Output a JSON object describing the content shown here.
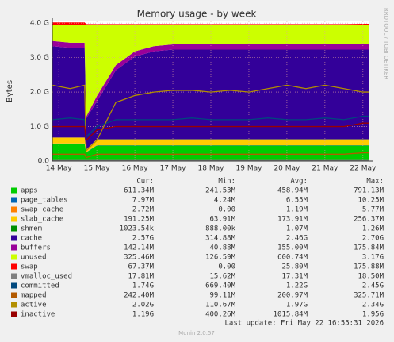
{
  "chart_data": {
    "type": "stacked_area",
    "title": "Memory usage - by week",
    "y_label": "Bytes",
    "side_label": "RRDTOOL / TOBI OETIKER",
    "footer": "Last update: Fri May 22 16:55:31 2026",
    "version": "Munin 2.0.57",
    "legend_headers": [
      "Cur:",
      "Min:",
      "Avg:",
      "Max:"
    ],
    "xlim": [
      -0.17,
      8.17
    ],
    "xticks": [
      {
        "value": 0,
        "label": "14 May"
      },
      {
        "value": 1,
        "label": "15 May"
      },
      {
        "value": 2,
        "label": "16 May"
      },
      {
        "value": 3,
        "label": "17 May"
      },
      {
        "value": 4,
        "label": "18 May"
      },
      {
        "value": 5,
        "label": "19 May"
      },
      {
        "value": 6,
        "label": "20 May"
      },
      {
        "value": 7,
        "label": "21 May"
      },
      {
        "value": 8,
        "label": "22 May"
      }
    ],
    "ylim": [
      0,
      4.05
    ],
    "yticks": [
      {
        "value": 0,
        "label": "0.0"
      },
      {
        "value": 1,
        "label": "1.0 G"
      },
      {
        "value": 2,
        "label": "2.0 G"
      },
      {
        "value": 3,
        "label": "3.0 G"
      },
      {
        "value": 4,
        "label": "4.0 G"
      }
    ],
    "grid": true,
    "x": [
      -0.17,
      0.3,
      0.68,
      0.72,
      1.0,
      1.5,
      2.0,
      2.5,
      3.0,
      3.5,
      4.0,
      4.5,
      5.0,
      5.5,
      6.0,
      6.5,
      7.0,
      7.5,
      8.0,
      8.17
    ],
    "series": [
      {
        "name": "apps",
        "color": "#00cc00",
        "kind": "area",
        "cur": "611.34M",
        "min": "241.53M",
        "avg": "458.94M",
        "max": "791.13M",
        "values": [
          0.5,
          0.5,
          0.5,
          0.25,
          0.45,
          0.45,
          0.45,
          0.45,
          0.45,
          0.45,
          0.45,
          0.45,
          0.45,
          0.45,
          0.45,
          0.45,
          0.45,
          0.45,
          0.45,
          0.45
        ]
      },
      {
        "name": "page_tables",
        "color": "#0066b3",
        "kind": "area",
        "cur": "7.97M",
        "min": "4.24M",
        "avg": "6.55M",
        "max": "10.25M",
        "values": [
          0.008,
          0.008,
          0.008,
          0.008,
          0.008,
          0.008,
          0.008,
          0.008,
          0.008,
          0.008,
          0.008,
          0.008,
          0.008,
          0.008,
          0.008,
          0.008,
          0.008,
          0.008,
          0.008,
          0.008
        ]
      },
      {
        "name": "swap_cache",
        "color": "#ff8000",
        "kind": "area",
        "cur": "2.72M",
        "min": "0.00",
        "avg": "1.19M",
        "max": "5.77M",
        "values": [
          0.003,
          0.003,
          0.003,
          0.003,
          0.003,
          0.003,
          0.003,
          0.003,
          0.003,
          0.003,
          0.003,
          0.003,
          0.003,
          0.003,
          0.003,
          0.003,
          0.003,
          0.003,
          0.003,
          0.003
        ]
      },
      {
        "name": "slab_cache",
        "color": "#ffcc00",
        "kind": "area",
        "cur": "191.25M",
        "min": "63.91M",
        "avg": "173.91M",
        "max": "256.37M",
        "values": [
          0.17,
          0.17,
          0.17,
          0.07,
          0.17,
          0.17,
          0.17,
          0.17,
          0.17,
          0.17,
          0.17,
          0.17,
          0.17,
          0.17,
          0.17,
          0.17,
          0.17,
          0.17,
          0.17,
          0.17
        ]
      },
      {
        "name": "shmem",
        "color": "#008f00",
        "kind": "area",
        "cur": "1023.54k",
        "min": "888.00k",
        "avg": "1.07M",
        "max": "1.26M",
        "values": [
          0.001,
          0.001,
          0.001,
          0.001,
          0.001,
          0.001,
          0.001,
          0.001,
          0.001,
          0.001,
          0.001,
          0.001,
          0.001,
          0.001,
          0.001,
          0.001,
          0.001,
          0.001,
          0.001,
          0.001
        ]
      },
      {
        "name": "cache",
        "color": "#330099",
        "kind": "area",
        "cur": "2.57G",
        "min": "314.88M",
        "avg": "2.46G",
        "max": "2.70G",
        "values": [
          2.65,
          2.6,
          2.6,
          0.9,
          1.1,
          2.0,
          2.4,
          2.55,
          2.6,
          2.6,
          2.6,
          2.6,
          2.6,
          2.6,
          2.6,
          2.6,
          2.6,
          2.6,
          2.6,
          2.6
        ]
      },
      {
        "name": "buffers",
        "color": "#990099",
        "kind": "area",
        "cur": "142.14M",
        "min": "40.88M",
        "avg": "155.00M",
        "max": "175.84M",
        "values": [
          0.15,
          0.15,
          0.15,
          0.05,
          0.15,
          0.15,
          0.15,
          0.15,
          0.15,
          0.15,
          0.15,
          0.15,
          0.15,
          0.15,
          0.15,
          0.15,
          0.15,
          0.15,
          0.15,
          0.15
        ]
      },
      {
        "name": "unused",
        "color": "#ccff00",
        "kind": "area",
        "cur": "325.46M",
        "min": "126.59M",
        "avg": "600.74M",
        "max": "3.17G",
        "values": [
          0.47,
          0.52,
          0.52,
          2.67,
          2.07,
          1.17,
          0.77,
          0.62,
          0.57,
          0.57,
          0.57,
          0.57,
          0.57,
          0.57,
          0.57,
          0.57,
          0.57,
          0.57,
          0.57,
          0.57
        ]
      },
      {
        "name": "swap",
        "color": "#ff0000",
        "kind": "area",
        "cur": "67.37M",
        "min": "0.00",
        "avg": "25.80M",
        "max": "175.88M",
        "values": [
          0.07,
          0.07,
          0.07,
          0.02,
          0.02,
          0.02,
          0.02,
          0.02,
          0.02,
          0.02,
          0.02,
          0.02,
          0.02,
          0.02,
          0.02,
          0.02,
          0.02,
          0.02,
          0.03,
          0.03
        ]
      },
      {
        "name": "vmalloc_used",
        "color": "#808080",
        "kind": "line",
        "cur": "17.81M",
        "min": "15.62M",
        "avg": "17.31M",
        "max": "18.50M",
        "values": [
          0.018,
          0.018,
          0.018,
          0.018,
          0.018,
          0.018,
          0.018,
          0.018,
          0.018,
          0.018,
          0.018,
          0.018,
          0.018,
          0.018,
          0.018,
          0.018,
          0.018,
          0.018,
          0.018,
          0.018
        ]
      },
      {
        "name": "committed",
        "color": "#00487d",
        "kind": "line",
        "cur": "1.74G",
        "min": "669.40M",
        "avg": "1.22G",
        "max": "2.45G",
        "values": [
          1.2,
          1.25,
          1.2,
          0.7,
          1.0,
          1.2,
          1.2,
          1.2,
          1.2,
          1.25,
          1.2,
          1.2,
          1.2,
          1.25,
          1.2,
          1.2,
          1.25,
          1.2,
          1.3,
          1.3
        ]
      },
      {
        "name": "mapped",
        "color": "#b35a00",
        "kind": "line",
        "cur": "242.40M",
        "min": "99.11M",
        "avg": "200.97M",
        "max": "325.71M",
        "values": [
          0.2,
          0.2,
          0.2,
          0.1,
          0.2,
          0.2,
          0.2,
          0.2,
          0.2,
          0.2,
          0.2,
          0.2,
          0.2,
          0.2,
          0.2,
          0.2,
          0.2,
          0.2,
          0.24,
          0.24
        ]
      },
      {
        "name": "active",
        "color": "#b38f00",
        "kind": "line",
        "cur": "2.02G",
        "min": "110.67M",
        "avg": "1.97G",
        "max": "2.34G",
        "values": [
          2.2,
          2.1,
          2.2,
          0.3,
          0.6,
          1.7,
          1.9,
          2.0,
          2.05,
          2.05,
          2.0,
          2.05,
          2.0,
          2.1,
          2.2,
          2.1,
          2.2,
          2.1,
          2.0,
          2.0
        ]
      },
      {
        "name": "inactive",
        "color": "#990000",
        "kind": "line",
        "cur": "1.19G",
        "min": "400.26M",
        "avg": "1015.84M",
        "max": "1.95G",
        "values": [
          1.0,
          1.0,
          1.0,
          0.6,
          0.9,
          1.0,
          1.0,
          1.0,
          1.0,
          1.0,
          1.0,
          1.0,
          1.0,
          1.0,
          1.0,
          1.0,
          1.0,
          1.0,
          1.1,
          1.1
        ]
      }
    ]
  }
}
